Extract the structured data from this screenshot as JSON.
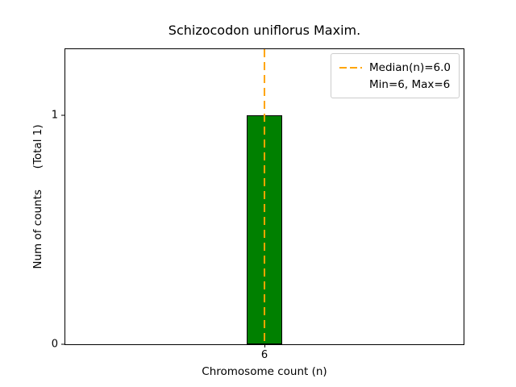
{
  "figure": {
    "background": "#ffffff"
  },
  "chart_data": {
    "type": "bar",
    "title": "Schizocodon uniflorus Maxim.",
    "xlabel": "Chromosome count (n)",
    "ylabel": "Num of counts      (Total 1)",
    "categories": [
      "6"
    ],
    "x_values": [
      6
    ],
    "values": [
      1
    ],
    "yticks": [
      0,
      1
    ],
    "ylim": [
      0,
      1.29
    ],
    "bar_width_frac": 0.09,
    "bar_color": "#008000",
    "bar_edge_color": "#000000",
    "grid": false,
    "median_line": {
      "x": 6,
      "value_label": "Median(n)=6.0",
      "color": "#FFA500",
      "style": "dashed"
    },
    "legend": {
      "position": "upper right",
      "entries": [
        {
          "label": "Median(n)=6.0",
          "marker": "dashed-line",
          "color": "#FFA500"
        },
        {
          "label": "Min=6, Max=6",
          "marker": "none"
        }
      ]
    }
  }
}
